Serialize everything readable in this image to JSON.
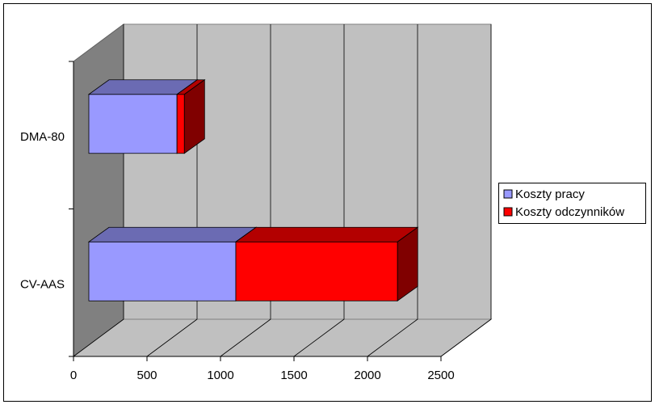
{
  "chart_data": {
    "type": "bar3d_stacked_horizontal",
    "categories": [
      "DMA-80",
      "CV-AAS"
    ],
    "series": [
      {
        "name": "Koszty pracy",
        "color": "#9999ff",
        "values": [
          600,
          1000
        ]
      },
      {
        "name": "Koszty odczynników",
        "color": "#ff0000",
        "values": [
          50,
          1100
        ]
      }
    ],
    "xlim": [
      0,
      2500
    ],
    "xticks": [
      0,
      500,
      1000,
      1500,
      2000,
      2500
    ],
    "grid": true,
    "legend": "right"
  }
}
